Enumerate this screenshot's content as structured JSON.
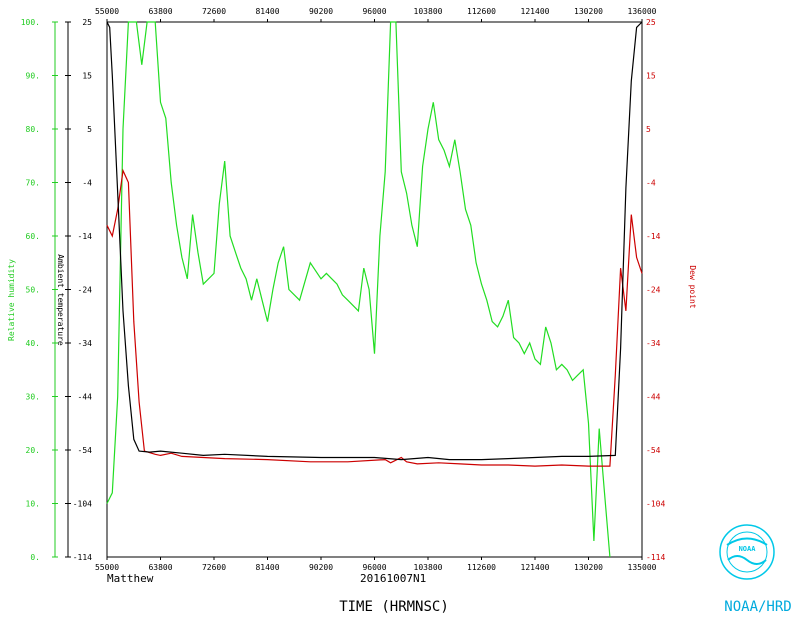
{
  "chart_data": {
    "type": "line",
    "x_ticks_bottom": [
      "55000",
      "63800",
      "72600",
      "81400",
      "90200",
      "96000",
      "103800",
      "112600",
      "121400",
      "130200",
      "135000"
    ],
    "x_ticks_top": [
      "55000",
      "63800",
      "72600",
      "81400",
      "90200",
      "96000",
      "103800",
      "112600",
      "121400",
      "130200",
      "136000"
    ],
    "rh_axis": {
      "label": "Relative humidity",
      "ticks": [
        "0.",
        "10.",
        "20.",
        "30.",
        "40.",
        "50.",
        "60.",
        "70.",
        "80.",
        "90.",
        "100."
      ],
      "color": "#22cc22"
    },
    "temp_axis": {
      "label": "Ambient temperature",
      "ticks": [
        "-114",
        "-104",
        "-54",
        "-44",
        "-34",
        "-24",
        "-14",
        "-4",
        "5",
        "15",
        "25"
      ],
      "color": "#000000"
    },
    "dew_axis": {
      "label": "Dew point",
      "ticks": [
        "-114",
        "-104",
        "-54",
        "-44",
        "-34",
        "-24",
        "-14",
        "-4",
        "5",
        "15",
        "25"
      ],
      "color": "#cc0000"
    },
    "xlabel": "TIME (HRMNSC)",
    "storm": "Matthew",
    "flight": "20161007N1",
    "series": [
      {
        "key": "rh",
        "color": "#22dd22",
        "points": [
          [
            0,
            10
          ],
          [
            0.01,
            12
          ],
          [
            0.02,
            30
          ],
          [
            0.03,
            80
          ],
          [
            0.04,
            100
          ],
          [
            0.055,
            100
          ],
          [
            0.065,
            92
          ],
          [
            0.075,
            100
          ],
          [
            0.09,
            100
          ],
          [
            0.1,
            85
          ],
          [
            0.11,
            82
          ],
          [
            0.12,
            70
          ],
          [
            0.13,
            62
          ],
          [
            0.14,
            56
          ],
          [
            0.15,
            52
          ],
          [
            0.16,
            64
          ],
          [
            0.17,
            57
          ],
          [
            0.18,
            51
          ],
          [
            0.2,
            53
          ],
          [
            0.21,
            66
          ],
          [
            0.22,
            74
          ],
          [
            0.23,
            60
          ],
          [
            0.24,
            57
          ],
          [
            0.25,
            54
          ],
          [
            0.26,
            52
          ],
          [
            0.27,
            48
          ],
          [
            0.28,
            52
          ],
          [
            0.29,
            48
          ],
          [
            0.3,
            44
          ],
          [
            0.31,
            50
          ],
          [
            0.32,
            55
          ],
          [
            0.33,
            58
          ],
          [
            0.34,
            50
          ],
          [
            0.36,
            48
          ],
          [
            0.38,
            55
          ],
          [
            0.4,
            52
          ],
          [
            0.41,
            53
          ],
          [
            0.43,
            51
          ],
          [
            0.44,
            49
          ],
          [
            0.45,
            48
          ],
          [
            0.46,
            47
          ],
          [
            0.47,
            46
          ],
          [
            0.48,
            54
          ],
          [
            0.49,
            50
          ],
          [
            0.5,
            38
          ],
          [
            0.51,
            60
          ],
          [
            0.52,
            72
          ],
          [
            0.53,
            100
          ],
          [
            0.54,
            100
          ],
          [
            0.55,
            72
          ],
          [
            0.56,
            68
          ],
          [
            0.57,
            62
          ],
          [
            0.58,
            58
          ],
          [
            0.59,
            73
          ],
          [
            0.6,
            80
          ],
          [
            0.61,
            85
          ],
          [
            0.62,
            78
          ],
          [
            0.63,
            76
          ],
          [
            0.64,
            73
          ],
          [
            0.65,
            78
          ],
          [
            0.66,
            72
          ],
          [
            0.67,
            65
          ],
          [
            0.68,
            62
          ],
          [
            0.69,
            55
          ],
          [
            0.7,
            51
          ],
          [
            0.71,
            48
          ],
          [
            0.72,
            44
          ],
          [
            0.73,
            43
          ],
          [
            0.74,
            45
          ],
          [
            0.75,
            48
          ],
          [
            0.76,
            41
          ],
          [
            0.77,
            40
          ],
          [
            0.78,
            38
          ],
          [
            0.79,
            40
          ],
          [
            0.8,
            37
          ],
          [
            0.81,
            36
          ],
          [
            0.82,
            43
          ],
          [
            0.83,
            40
          ],
          [
            0.84,
            35
          ],
          [
            0.85,
            36
          ],
          [
            0.86,
            35
          ],
          [
            0.87,
            33
          ],
          [
            0.88,
            34
          ],
          [
            0.89,
            35
          ],
          [
            0.9,
            25
          ],
          [
            0.91,
            3
          ],
          [
            0.92,
            24
          ],
          [
            0.93,
            12
          ],
          [
            0.94,
            0
          ]
        ]
      },
      {
        "key": "temp",
        "color": "#000000",
        "points": [
          [
            0,
            25
          ],
          [
            0.005,
            24
          ],
          [
            0.01,
            15
          ],
          [
            0.02,
            -6
          ],
          [
            0.03,
            -28
          ],
          [
            0.04,
            -42
          ],
          [
            0.05,
            -52
          ],
          [
            0.06,
            -55
          ],
          [
            0.08,
            -56
          ],
          [
            0.1,
            -55
          ],
          [
            0.14,
            -57
          ],
          [
            0.18,
            -59
          ],
          [
            0.22,
            -58
          ],
          [
            0.3,
            -60
          ],
          [
            0.4,
            -61
          ],
          [
            0.5,
            -61
          ],
          [
            0.55,
            -63
          ],
          [
            0.6,
            -61
          ],
          [
            0.64,
            -63
          ],
          [
            0.7,
            -63
          ],
          [
            0.75,
            -62
          ],
          [
            0.8,
            -61
          ],
          [
            0.85,
            -60
          ],
          [
            0.9,
            -60
          ],
          [
            0.95,
            -59
          ],
          [
            0.96,
            -35
          ],
          [
            0.97,
            -5
          ],
          [
            0.98,
            14
          ],
          [
            0.99,
            24
          ],
          [
            1,
            25
          ]
        ]
      },
      {
        "key": "dew",
        "color": "#cc0000",
        "points": [
          [
            0,
            -12
          ],
          [
            0.01,
            -14
          ],
          [
            0.02,
            -9
          ],
          [
            0.03,
            -2
          ],
          [
            0.04,
            -4
          ],
          [
            0.05,
            -30
          ],
          [
            0.06,
            -45
          ],
          [
            0.07,
            -55
          ],
          [
            0.09,
            -58
          ],
          [
            0.1,
            -59
          ],
          [
            0.12,
            -57
          ],
          [
            0.14,
            -60
          ],
          [
            0.18,
            -61
          ],
          [
            0.22,
            -62
          ],
          [
            0.3,
            -63
          ],
          [
            0.38,
            -65
          ],
          [
            0.45,
            -65
          ],
          [
            0.52,
            -63
          ],
          [
            0.53,
            -66
          ],
          [
            0.55,
            -61
          ],
          [
            0.56,
            -65
          ],
          [
            0.58,
            -67
          ],
          [
            0.62,
            -66
          ],
          [
            0.66,
            -67
          ],
          [
            0.7,
            -68
          ],
          [
            0.75,
            -68
          ],
          [
            0.8,
            -69
          ],
          [
            0.85,
            -68
          ],
          [
            0.9,
            -69
          ],
          [
            0.94,
            -69
          ],
          [
            0.95,
            -40
          ],
          [
            0.96,
            -20
          ],
          [
            0.97,
            -28
          ],
          [
            0.98,
            -10
          ],
          [
            0.99,
            -18
          ],
          [
            1,
            -21
          ]
        ]
      }
    ]
  },
  "logo": {
    "emblem_text": "NOAA",
    "caption": "NOAA/HRD"
  }
}
